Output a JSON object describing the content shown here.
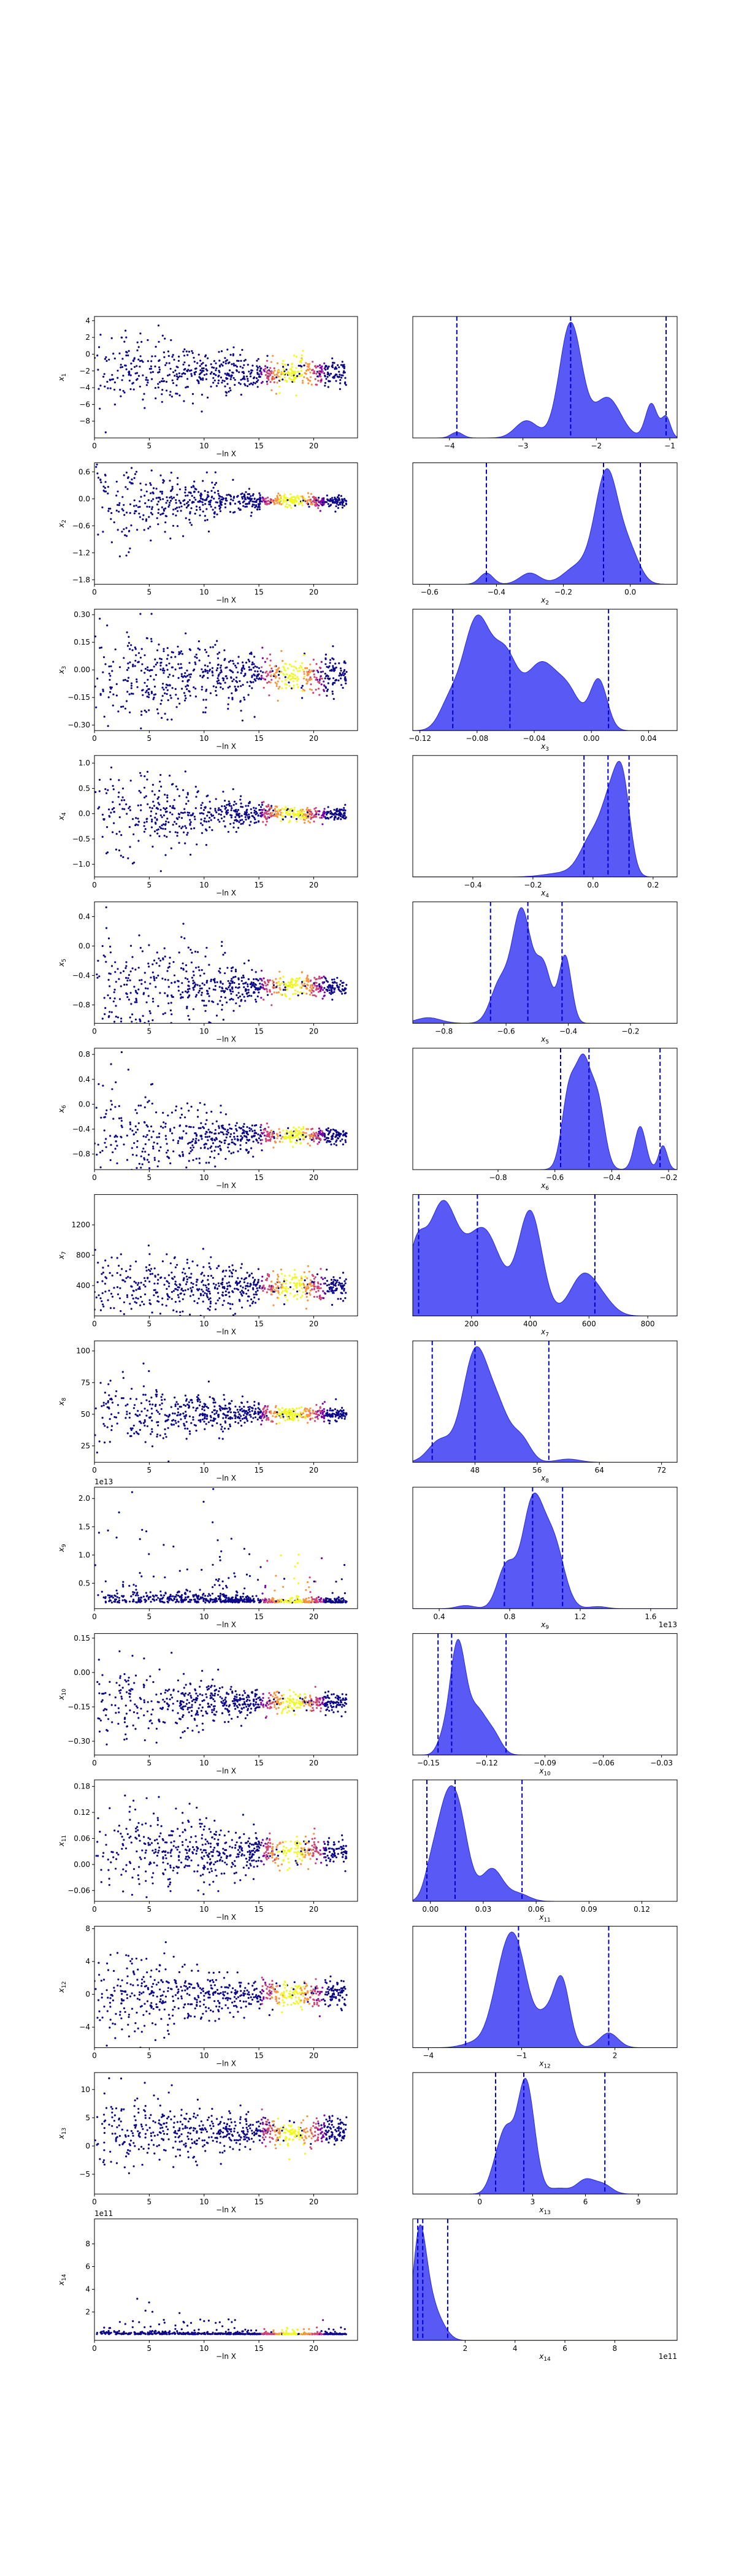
{
  "colors": {
    "scatter_base": "#0d0887",
    "scatter_hot": [
      "#7e03a8",
      "#cc4778",
      "#f89540",
      "#f0f921"
    ],
    "kde_fill": "#5959f5",
    "kde_edge": "#2c2cd6",
    "marker_line": "#0000cc",
    "axis": "#000000"
  },
  "scatter_xlabel": "−ln X",
  "scatter_xlim": [
    0,
    24
  ],
  "scatter_xticks": [
    "0",
    "5",
    "10",
    "15",
    "20"
  ],
  "chart_data": [
    {
      "param": "x1",
      "type": "scatter+kde",
      "scatter": {
        "ylabel": "x1",
        "ylim": [
          -10,
          4.5
        ],
        "yticks": [
          "4",
          "2",
          "0",
          "−2",
          "−4",
          "−6",
          "−8"
        ],
        "center": -2.2,
        "spread": [
          2.5,
          0.8
        ],
        "offset": ""
      },
      "kde": {
        "xlabel": "",
        "xlim": [
          -4.5,
          -0.9
        ],
        "xticks": [
          "−4",
          "−3",
          "−2",
          "−1"
        ],
        "markers": [
          -3.9,
          -2.35,
          -1.05
        ],
        "peaks": [
          [
            -3.9,
            0.05,
            0.08
          ],
          [
            -2.95,
            0.15,
            0.15
          ],
          [
            -2.35,
            1.0,
            0.15
          ],
          [
            -1.85,
            0.35,
            0.18
          ],
          [
            -1.25,
            0.3,
            0.08
          ],
          [
            -1.05,
            0.18,
            0.06
          ]
        ],
        "offset": ""
      }
    },
    {
      "param": "x2",
      "type": "scatter+kde",
      "scatter": {
        "ylabel": "x2",
        "ylim": [
          -1.9,
          0.8
        ],
        "yticks": [
          "0.6",
          "0.0",
          "−0.6",
          "−1.2",
          "−1.8"
        ],
        "center": -0.05,
        "spread": [
          0.55,
          0.07
        ],
        "offset": ""
      },
      "kde": {
        "xlabel": "x2",
        "xlim": [
          -0.65,
          0.14
        ],
        "xticks": [
          "−0.6",
          "−0.4",
          "−0.2",
          "0.0"
        ],
        "markers": [
          -0.43,
          -0.08,
          0.03
        ],
        "peaks": [
          [
            -0.43,
            0.1,
            0.02
          ],
          [
            -0.3,
            0.1,
            0.03
          ],
          [
            -0.16,
            0.15,
            0.04
          ],
          [
            -0.07,
            1.0,
            0.035
          ],
          [
            0.0,
            0.25,
            0.03
          ]
        ],
        "offset": ""
      }
    },
    {
      "param": "x3",
      "type": "scatter+kde",
      "scatter": {
        "ylabel": "x3",
        "ylim": [
          -0.33,
          0.33
        ],
        "yticks": [
          "0.30",
          "0.15",
          "0.00",
          "−0.15",
          "−0.30"
        ],
        "center": -0.03,
        "spread": [
          0.15,
          0.05
        ],
        "offset": ""
      },
      "kde": {
        "xlabel": "x3",
        "xlim": [
          -0.125,
          0.06
        ],
        "xticks": [
          "−0.12",
          "−0.08",
          "−0.04",
          "0.00",
          "0.04"
        ],
        "markers": [
          -0.097,
          -0.057,
          0.012
        ],
        "peaks": [
          [
            -0.1,
            0.2,
            0.007
          ],
          [
            -0.08,
            1.0,
            0.01
          ],
          [
            -0.06,
            0.55,
            0.008
          ],
          [
            -0.035,
            0.6,
            0.012
          ],
          [
            -0.015,
            0.25,
            0.008
          ],
          [
            0.005,
            0.45,
            0.006
          ]
        ],
        "offset": ""
      }
    },
    {
      "param": "x4",
      "type": "scatter+kde",
      "scatter": {
        "ylabel": "x4",
        "ylim": [
          -1.25,
          1.15
        ],
        "yticks": [
          "1.0",
          "0.5",
          "0.0",
          "−0.5",
          "−1.0"
        ],
        "center": 0.0,
        "spread": [
          0.5,
          0.07
        ],
        "offset": ""
      },
      "kde": {
        "xlabel": "x4",
        "xlim": [
          -0.6,
          0.28
        ],
        "xticks": [
          "−0.4",
          "−0.2",
          "0.0",
          "0.2"
        ],
        "markers": [
          -0.03,
          0.05,
          0.12
        ],
        "peaks": [
          [
            -0.1,
            0.05,
            0.06
          ],
          [
            0.0,
            0.5,
            0.04
          ],
          [
            0.06,
            0.8,
            0.03
          ],
          [
            0.1,
            1.0,
            0.025
          ]
        ],
        "offset": ""
      }
    },
    {
      "param": "x5",
      "type": "scatter+kde",
      "scatter": {
        "ylabel": "x5",
        "ylim": [
          -1.05,
          0.6
        ],
        "yticks": [
          "0.4",
          "0.0",
          "−0.4",
          "−0.8"
        ],
        "center": -0.55,
        "spread": [
          0.5,
          0.07
        ],
        "offset": ""
      },
      "kde": {
        "xlabel": "x5",
        "xlim": [
          -0.9,
          -0.05
        ],
        "xticks": [
          "−0.8",
          "−0.6",
          "−0.4",
          "−0.2"
        ],
        "markers": [
          -0.65,
          -0.53,
          -0.42
        ],
        "peaks": [
          [
            -0.85,
            0.05,
            0.04
          ],
          [
            -0.62,
            0.35,
            0.03
          ],
          [
            -0.55,
            1.0,
            0.03
          ],
          [
            -0.48,
            0.5,
            0.025
          ],
          [
            -0.41,
            0.6,
            0.02
          ]
        ],
        "offset": ""
      }
    },
    {
      "param": "x6",
      "type": "scatter+kde",
      "scatter": {
        "ylabel": "x6",
        "ylim": [
          -1.05,
          0.9
        ],
        "yticks": [
          "0.8",
          "0.4",
          "0.0",
          "−0.4",
          "−0.8"
        ],
        "center": -0.5,
        "spread": [
          0.5,
          0.06
        ],
        "offset": ""
      },
      "kde": {
        "xlabel": "x6",
        "xlim": [
          -1.1,
          -0.17
        ],
        "xticks": [
          "−0.8",
          "−0.6",
          "−0.4",
          "−0.2"
        ],
        "markers": [
          -0.58,
          -0.48,
          -0.23
        ],
        "peaks": [
          [
            -0.55,
            0.8,
            0.025
          ],
          [
            -0.5,
            1.0,
            0.025
          ],
          [
            -0.45,
            0.7,
            0.025
          ],
          [
            -0.3,
            0.45,
            0.02
          ],
          [
            -0.22,
            0.25,
            0.015
          ]
        ],
        "offset": ""
      }
    },
    {
      "param": "x7",
      "type": "scatter+kde",
      "scatter": {
        "ylabel": "x7",
        "ylim": [
          0,
          1600
        ],
        "yticks": [
          "1200",
          "800",
          "400"
        ],
        "center": 380,
        "spread": [
          320,
          90
        ],
        "offset": ""
      },
      "kde": {
        "xlabel": "x7",
        "xlim": [
          0,
          900
        ],
        "xticks": [
          "200",
          "400",
          "600",
          "800"
        ],
        "markers": [
          20,
          220,
          620
        ],
        "peaks": [
          [
            10,
            0.5,
            30
          ],
          [
            100,
            0.95,
            50
          ],
          [
            240,
            0.75,
            60
          ],
          [
            400,
            0.9,
            40
          ],
          [
            580,
            0.35,
            45
          ],
          [
            650,
            0.1,
            40
          ]
        ],
        "offset": ""
      }
    },
    {
      "param": "x8",
      "type": "scatter+kde",
      "scatter": {
        "ylabel": "x8",
        "ylim": [
          12,
          108
        ],
        "yticks": [
          "100",
          "75",
          "50",
          "25"
        ],
        "center": 50,
        "spread": [
          15,
          3
        ],
        "offset": ""
      },
      "kde": {
        "xlabel": "x8",
        "xlim": [
          40,
          74
        ],
        "xticks": [
          "48",
          "56",
          "64",
          "72"
        ],
        "markers": [
          42.5,
          48,
          57.5
        ],
        "peaks": [
          [
            43.5,
            0.2,
            1.5
          ],
          [
            48,
            1.0,
            1.6
          ],
          [
            51,
            0.45,
            1.5
          ],
          [
            54,
            0.2,
            1.2
          ],
          [
            60,
            0.03,
            1.5
          ]
        ],
        "offset": ""
      }
    },
    {
      "param": "x9",
      "type": "scatter+kde",
      "scatter": {
        "ylabel": "x9",
        "ylim": [
          0.05,
          2.2
        ],
        "yticks": [
          "2.0",
          "1.5",
          "1.0",
          "0.5"
        ],
        "center": 0.9,
        "spread": [
          0.5,
          0.12
        ],
        "offset": "1e13"
      },
      "kde": {
        "xlabel": "x9",
        "xlim": [
          0.25,
          1.75
        ],
        "xticks": [
          "0.4",
          "0.8",
          "1.2",
          "1.6"
        ],
        "markers": [
          0.77,
          0.93,
          1.1
        ],
        "peaks": [
          [
            0.55,
            0.03,
            0.05
          ],
          [
            0.78,
            0.4,
            0.05
          ],
          [
            0.93,
            1.0,
            0.06
          ],
          [
            1.05,
            0.6,
            0.06
          ],
          [
            1.3,
            0.02,
            0.05
          ]
        ],
        "offset": "1e13"
      }
    },
    {
      "param": "x10",
      "type": "scatter+kde",
      "scatter": {
        "ylabel": "x10",
        "ylim": [
          -0.36,
          0.17
        ],
        "yticks": [
          "0.15",
          "0.00",
          "−0.15",
          "−0.30"
        ],
        "center": -0.13,
        "spread": [
          0.1,
          0.02
        ],
        "offset": ""
      },
      "kde": {
        "xlabel": "x10",
        "xlim": [
          -0.158,
          -0.022
        ],
        "xticks": [
          "−0.15",
          "−0.12",
          "−0.09",
          "−0.06",
          "−0.03"
        ],
        "markers": [
          -0.145,
          -0.138,
          -0.11
        ],
        "peaks": [
          [
            -0.143,
            0.1,
            0.003
          ],
          [
            -0.135,
            1.0,
            0.004
          ],
          [
            -0.125,
            0.4,
            0.005
          ],
          [
            -0.116,
            0.15,
            0.004
          ]
        ],
        "offset": ""
      }
    },
    {
      "param": "x11",
      "type": "scatter+kde",
      "scatter": {
        "ylabel": "x11",
        "ylim": [
          -0.085,
          0.195
        ],
        "yticks": [
          "0.18",
          "0.12",
          "0.06",
          "0.00",
          "−0.06"
        ],
        "center": 0.03,
        "spread": [
          0.07,
          0.015
        ],
        "offset": ""
      },
      "kde": {
        "xlabel": "x11",
        "xlim": [
          -0.01,
          0.14
        ],
        "xticks": [
          "0.00",
          "0.03",
          "0.06",
          "0.09",
          "0.12"
        ],
        "markers": [
          -0.002,
          0.014,
          0.052
        ],
        "peaks": [
          [
            0.0,
            0.25,
            0.004
          ],
          [
            0.007,
            0.6,
            0.005
          ],
          [
            0.015,
            1.0,
            0.006
          ],
          [
            0.035,
            0.35,
            0.006
          ],
          [
            0.05,
            0.08,
            0.006
          ]
        ],
        "offset": ""
      }
    },
    {
      "param": "x12",
      "type": "scatter+kde",
      "scatter": {
        "ylabel": "x12",
        "ylim": [
          -6.5,
          8.3
        ],
        "yticks": [
          "8",
          "4",
          "0",
          "−4"
        ],
        "center": 0.0,
        "spread": [
          3.0,
          0.8
        ],
        "offset": ""
      },
      "kde": {
        "xlabel": "x12",
        "xlim": [
          -4.5,
          4.0
        ],
        "xticks": [
          "−4",
          "−1",
          "2"
        ],
        "markers": [
          -2.8,
          -1.1,
          1.8
        ],
        "peaks": [
          [
            -2.5,
            0.05,
            0.4
          ],
          [
            -1.7,
            0.4,
            0.35
          ],
          [
            -1.2,
            1.0,
            0.4
          ],
          [
            -0.2,
            0.3,
            0.3
          ],
          [
            0.3,
            0.65,
            0.25
          ],
          [
            1.8,
            0.15,
            0.3
          ]
        ],
        "offset": ""
      }
    },
    {
      "param": "x13",
      "type": "scatter+kde",
      "scatter": {
        "ylabel": "x13",
        "ylim": [
          -8.5,
          13
        ],
        "yticks": [
          "10",
          "5",
          "0",
          "−5"
        ],
        "center": 2.5,
        "spread": [
          4.0,
          1.2
        ],
        "offset": ""
      },
      "kde": {
        "xlabel": "x13",
        "xlim": [
          -3.8,
          11.2
        ],
        "xticks": [
          "0",
          "3",
          "6",
          "9"
        ],
        "markers": [
          0.9,
          2.5,
          7.1
        ],
        "peaks": [
          [
            0.9,
            0.2,
            0.4
          ],
          [
            1.5,
            0.45,
            0.4
          ],
          [
            2.6,
            1.0,
            0.5
          ],
          [
            4.5,
            0.05,
            0.6
          ],
          [
            6.0,
            0.12,
            0.5
          ],
          [
            7.0,
            0.08,
            0.5
          ]
        ],
        "offset": ""
      }
    },
    {
      "param": "x14",
      "type": "scatter+kde",
      "scatter": {
        "ylabel": "x14",
        "ylim": [
          -0.5,
          10.2
        ],
        "yticks": [
          "8",
          "6",
          "4",
          "2"
        ],
        "center": 0.2,
        "spread": [
          0.5,
          0.1
        ],
        "offset": "1e11"
      },
      "kde": {
        "xlabel": "x14",
        "xlim": [
          -0.1,
          10.5
        ],
        "xticks": [
          "2",
          "4",
          "6",
          "8"
        ],
        "markers": [
          0.1,
          0.3,
          1.3
        ],
        "peaks": [
          [
            0.15,
            1.0,
            0.25
          ],
          [
            0.5,
            0.5,
            0.35
          ],
          [
            1.1,
            0.1,
            0.3
          ]
        ],
        "offset": "1e11"
      }
    }
  ]
}
